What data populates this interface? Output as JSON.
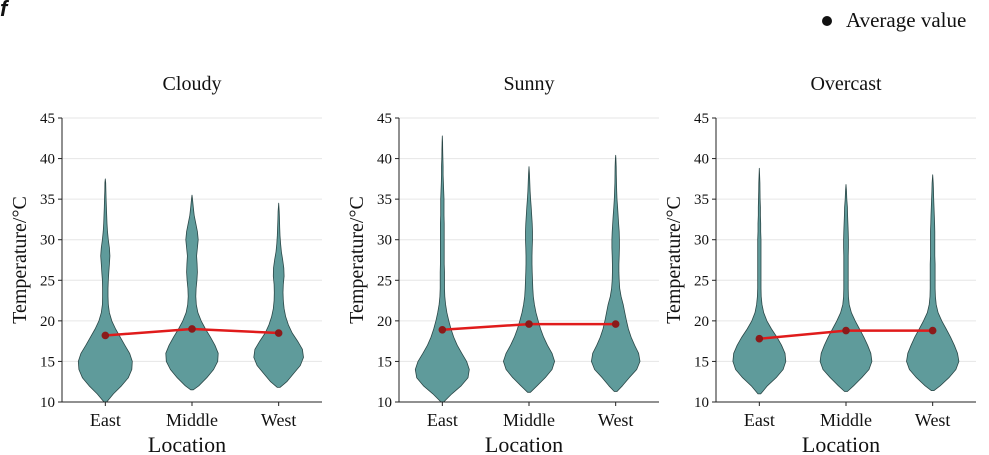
{
  "figure": {
    "panel_label": "f"
  },
  "legend": {
    "label": "Average value",
    "marker_color": "#111111"
  },
  "colors": {
    "violin_fill": "#5f9b9b",
    "violin_stroke": "#2a4747",
    "mean_line": "#e01b1b",
    "mean_marker": "#8b1a1a",
    "grid": "#e6e6e6",
    "axis": "#222222"
  },
  "chart_data": [
    {
      "type": "violin",
      "title": "Cloudy",
      "xlabel": "Location",
      "ylabel": "Temperature/°C",
      "ylim": [
        10,
        45
      ],
      "yticks": [
        10,
        15,
        20,
        25,
        30,
        35,
        40,
        45
      ],
      "grid": true,
      "categories": [
        "East",
        "Middle",
        "West"
      ],
      "means": [
        18.2,
        19.0,
        18.5
      ],
      "violins": [
        {
          "min": 10,
          "max": 37.5,
          "density": [
            [
              10,
              0.05
            ],
            [
              11,
              0.3
            ],
            [
              12,
              0.6
            ],
            [
              13,
              0.85
            ],
            [
              14,
              0.98
            ],
            [
              15,
              1.0
            ],
            [
              16,
              0.9
            ],
            [
              17,
              0.72
            ],
            [
              18,
              0.55
            ],
            [
              19,
              0.38
            ],
            [
              20,
              0.24
            ],
            [
              21,
              0.15
            ],
            [
              22,
              0.11
            ],
            [
              23,
              0.1
            ],
            [
              24,
              0.1
            ],
            [
              25,
              0.11
            ],
            [
              26,
              0.13
            ],
            [
              27,
              0.15
            ],
            [
              28,
              0.17
            ],
            [
              29,
              0.15
            ],
            [
              30,
              0.11
            ],
            [
              31,
              0.08
            ],
            [
              32,
              0.06
            ],
            [
              33,
              0.05
            ],
            [
              34,
              0.04
            ],
            [
              35,
              0.03
            ],
            [
              36,
              0.02
            ],
            [
              37,
              0.015
            ],
            [
              37.5,
              0
            ]
          ]
        },
        {
          "min": 11.5,
          "max": 35.5,
          "density": [
            [
              11.5,
              0.05
            ],
            [
              12,
              0.25
            ],
            [
              13,
              0.55
            ],
            [
              14,
              0.8
            ],
            [
              15,
              0.95
            ],
            [
              16,
              0.97
            ],
            [
              17,
              0.85
            ],
            [
              18,
              0.68
            ],
            [
              19,
              0.5
            ],
            [
              20,
              0.34
            ],
            [
              21,
              0.22
            ],
            [
              22,
              0.16
            ],
            [
              23,
              0.14
            ],
            [
              24,
              0.15
            ],
            [
              25,
              0.18
            ],
            [
              26,
              0.2
            ],
            [
              27,
              0.19
            ],
            [
              28,
              0.17
            ],
            [
              29,
              0.2
            ],
            [
              30,
              0.23
            ],
            [
              31,
              0.2
            ],
            [
              32,
              0.14
            ],
            [
              33,
              0.08
            ],
            [
              34,
              0.05
            ],
            [
              35,
              0.02
            ],
            [
              35.5,
              0
            ]
          ]
        },
        {
          "min": 11.8,
          "max": 34.5,
          "density": [
            [
              11.8,
              0.05
            ],
            [
              12.5,
              0.3
            ],
            [
              13.5,
              0.55
            ],
            [
              14.5,
              0.8
            ],
            [
              15.5,
              0.92
            ],
            [
              16.5,
              0.88
            ],
            [
              17.5,
              0.7
            ],
            [
              18.5,
              0.5
            ],
            [
              19.5,
              0.36
            ],
            [
              20.5,
              0.26
            ],
            [
              21.5,
              0.2
            ],
            [
              22.5,
              0.17
            ],
            [
              23.5,
              0.16
            ],
            [
              24.5,
              0.17
            ],
            [
              25.5,
              0.2
            ],
            [
              26.5,
              0.19
            ],
            [
              27.5,
              0.15
            ],
            [
              28.5,
              0.1
            ],
            [
              29.5,
              0.07
            ],
            [
              30.5,
              0.05
            ],
            [
              31.5,
              0.04
            ],
            [
              32.5,
              0.03
            ],
            [
              33.5,
              0.02
            ],
            [
              34.5,
              0
            ]
          ]
        }
      ]
    },
    {
      "type": "violin",
      "title": "Sunny",
      "xlabel": "Location",
      "ylabel": "Temperature/°C",
      "ylim": [
        10,
        45
      ],
      "yticks": [
        10,
        15,
        20,
        25,
        30,
        35,
        40,
        45
      ],
      "grid": true,
      "categories": [
        "East",
        "Middle",
        "West"
      ],
      "means": [
        18.9,
        19.6,
        19.6
      ],
      "violins": [
        {
          "min": 10,
          "max": 42.8,
          "density": [
            [
              10,
              0.05
            ],
            [
              11,
              0.35
            ],
            [
              12,
              0.7
            ],
            [
              13,
              0.95
            ],
            [
              14,
              1.0
            ],
            [
              15,
              0.9
            ],
            [
              16,
              0.72
            ],
            [
              17,
              0.55
            ],
            [
              18,
              0.42
            ],
            [
              19,
              0.32
            ],
            [
              20,
              0.24
            ],
            [
              21,
              0.17
            ],
            [
              22,
              0.12
            ],
            [
              23,
              0.09
            ],
            [
              24,
              0.08
            ],
            [
              25,
              0.08
            ],
            [
              26,
              0.08
            ],
            [
              27,
              0.07
            ],
            [
              28,
              0.07
            ],
            [
              29,
              0.07
            ],
            [
              30,
              0.07
            ],
            [
              31,
              0.07
            ],
            [
              32,
              0.07
            ],
            [
              33,
              0.06
            ],
            [
              34,
              0.06
            ],
            [
              35,
              0.06
            ],
            [
              36,
              0.05
            ],
            [
              37,
              0.04
            ],
            [
              38,
              0.03
            ],
            [
              39,
              0.03
            ],
            [
              40,
              0.02
            ],
            [
              41,
              0.015
            ],
            [
              42,
              0.01
            ],
            [
              42.8,
              0
            ]
          ]
        },
        {
          "min": 11.2,
          "max": 39.0,
          "density": [
            [
              11.2,
              0.05
            ],
            [
              12,
              0.3
            ],
            [
              13,
              0.6
            ],
            [
              14,
              0.85
            ],
            [
              15,
              0.95
            ],
            [
              16,
              0.85
            ],
            [
              17,
              0.68
            ],
            [
              18,
              0.54
            ],
            [
              19,
              0.43
            ],
            [
              20,
              0.34
            ],
            [
              21,
              0.26
            ],
            [
              22,
              0.2
            ],
            [
              23,
              0.16
            ],
            [
              24,
              0.14
            ],
            [
              25,
              0.13
            ],
            [
              26,
              0.12
            ],
            [
              27,
              0.11
            ],
            [
              28,
              0.11
            ],
            [
              29,
              0.12
            ],
            [
              30,
              0.13
            ],
            [
              31,
              0.13
            ],
            [
              32,
              0.12
            ],
            [
              33,
              0.1
            ],
            [
              34,
              0.08
            ],
            [
              35,
              0.06
            ],
            [
              36,
              0.04
            ],
            [
              37,
              0.03
            ],
            [
              38,
              0.02
            ],
            [
              39,
              0
            ]
          ]
        },
        {
          "min": 11.3,
          "max": 40.4,
          "density": [
            [
              11.3,
              0.05
            ],
            [
              12,
              0.25
            ],
            [
              13,
              0.5
            ],
            [
              14,
              0.78
            ],
            [
              15,
              0.9
            ],
            [
              16,
              0.85
            ],
            [
              17,
              0.7
            ],
            [
              18,
              0.57
            ],
            [
              19,
              0.47
            ],
            [
              20,
              0.4
            ],
            [
              21,
              0.34
            ],
            [
              22,
              0.28
            ],
            [
              23,
              0.2
            ],
            [
              24,
              0.15
            ],
            [
              25,
              0.13
            ],
            [
              26,
              0.12
            ],
            [
              27,
              0.12
            ],
            [
              28,
              0.13
            ],
            [
              29,
              0.14
            ],
            [
              30,
              0.14
            ],
            [
              31,
              0.13
            ],
            [
              32,
              0.11
            ],
            [
              33,
              0.09
            ],
            [
              34,
              0.07
            ],
            [
              35,
              0.05
            ],
            [
              36,
              0.04
            ],
            [
              37,
              0.03
            ],
            [
              38,
              0.025
            ],
            [
              39,
              0.02
            ],
            [
              40,
              0.01
            ],
            [
              40.4,
              0
            ]
          ]
        }
      ]
    },
    {
      "type": "violin",
      "title": "Overcast",
      "xlabel": "Location",
      "ylabel": "Temperature/°C",
      "ylim": [
        10,
        45
      ],
      "yticks": [
        10,
        15,
        20,
        25,
        30,
        35,
        40,
        45
      ],
      "grid": true,
      "categories": [
        "East",
        "Middle",
        "West"
      ],
      "means": [
        17.8,
        18.8,
        18.8
      ],
      "violins": [
        {
          "min": 11.0,
          "max": 38.8,
          "density": [
            [
              11,
              0.05
            ],
            [
              12,
              0.3
            ],
            [
              13,
              0.62
            ],
            [
              14,
              0.88
            ],
            [
              15,
              0.98
            ],
            [
              16,
              0.95
            ],
            [
              17,
              0.82
            ],
            [
              18,
              0.65
            ],
            [
              19,
              0.45
            ],
            [
              20,
              0.28
            ],
            [
              21,
              0.16
            ],
            [
              22,
              0.1
            ],
            [
              23,
              0.07
            ],
            [
              24,
              0.06
            ],
            [
              25,
              0.06
            ],
            [
              26,
              0.06
            ],
            [
              27,
              0.06
            ],
            [
              28,
              0.06
            ],
            [
              29,
              0.06
            ],
            [
              30,
              0.06
            ],
            [
              31,
              0.05
            ],
            [
              32,
              0.05
            ],
            [
              33,
              0.04
            ],
            [
              34,
              0.04
            ],
            [
              35,
              0.03
            ],
            [
              36,
              0.025
            ],
            [
              37,
              0.02
            ],
            [
              38,
              0.01
            ],
            [
              38.8,
              0
            ]
          ]
        },
        {
          "min": 11.3,
          "max": 36.8,
          "density": [
            [
              11.3,
              0.05
            ],
            [
              12,
              0.28
            ],
            [
              13,
              0.58
            ],
            [
              14,
              0.85
            ],
            [
              15,
              0.96
            ],
            [
              16,
              0.92
            ],
            [
              17,
              0.8
            ],
            [
              18,
              0.66
            ],
            [
              19,
              0.5
            ],
            [
              20,
              0.34
            ],
            [
              21,
              0.2
            ],
            [
              22,
              0.12
            ],
            [
              23,
              0.09
            ],
            [
              24,
              0.08
            ],
            [
              25,
              0.08
            ],
            [
              26,
              0.08
            ],
            [
              27,
              0.08
            ],
            [
              28,
              0.08
            ],
            [
              29,
              0.09
            ],
            [
              30,
              0.09
            ],
            [
              31,
              0.08
            ],
            [
              32,
              0.07
            ],
            [
              33,
              0.06
            ],
            [
              34,
              0.05
            ],
            [
              35,
              0.03
            ],
            [
              36,
              0.02
            ],
            [
              36.8,
              0
            ]
          ]
        },
        {
          "min": 11.4,
          "max": 38.0,
          "density": [
            [
              11.4,
              0.05
            ],
            [
              12,
              0.28
            ],
            [
              13,
              0.6
            ],
            [
              14,
              0.86
            ],
            [
              15,
              0.97
            ],
            [
              16,
              0.92
            ],
            [
              17,
              0.8
            ],
            [
              18,
              0.66
            ],
            [
              19,
              0.5
            ],
            [
              20,
              0.34
            ],
            [
              21,
              0.2
            ],
            [
              22,
              0.13
            ],
            [
              23,
              0.1
            ],
            [
              24,
              0.09
            ],
            [
              25,
              0.09
            ],
            [
              26,
              0.09
            ],
            [
              27,
              0.09
            ],
            [
              28,
              0.08
            ],
            [
              29,
              0.08
            ],
            [
              30,
              0.08
            ],
            [
              31,
              0.08
            ],
            [
              32,
              0.07
            ],
            [
              33,
              0.06
            ],
            [
              34,
              0.05
            ],
            [
              35,
              0.04
            ],
            [
              36,
              0.03
            ],
            [
              37,
              0.02
            ],
            [
              38,
              0
            ]
          ]
        }
      ]
    }
  ]
}
